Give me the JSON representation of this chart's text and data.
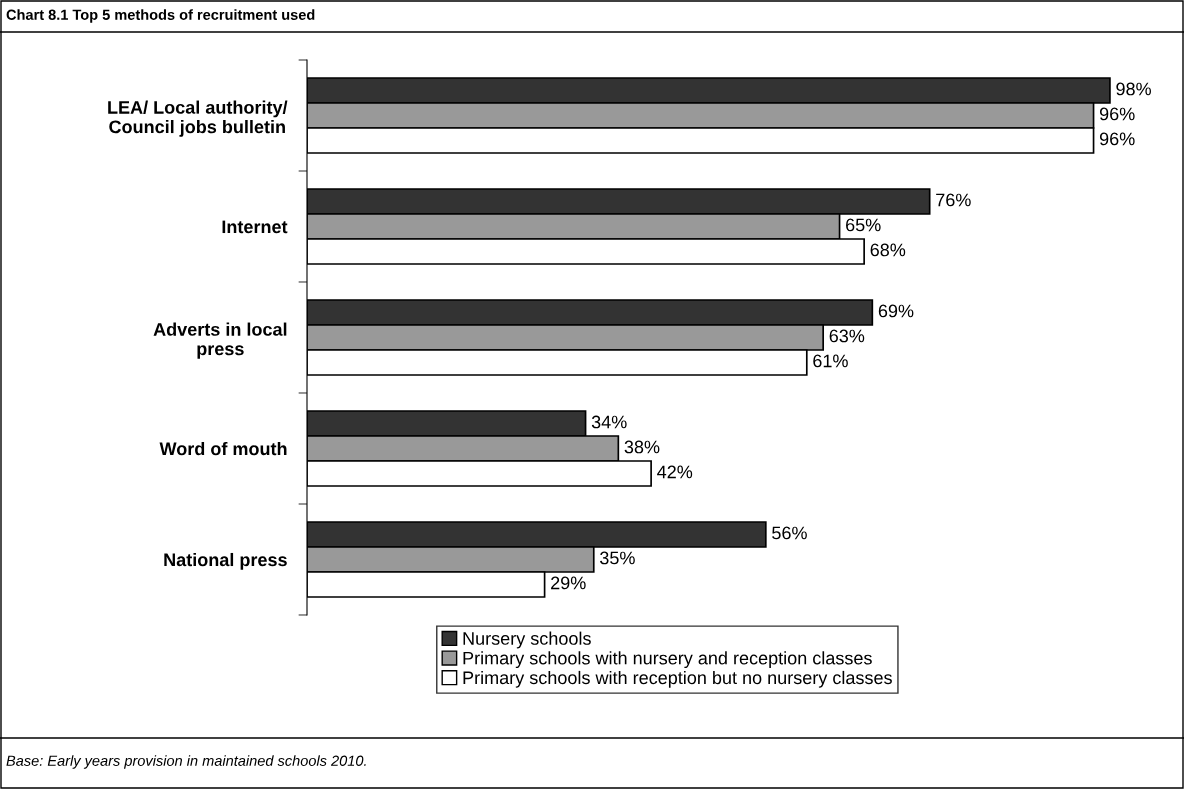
{
  "chart_data": {
    "type": "bar",
    "orientation": "horizontal",
    "title": "Chart 8.1 Top 5 methods of recruitment used",
    "categories": [
      "LEA/ Local authority/\nCouncil jobs bulletin",
      "Internet",
      "Adverts in local\npress",
      "Word of mouth",
      "National press"
    ],
    "series": [
      {
        "name": "Nursery schools",
        "color": "#333333",
        "values": [
          98,
          76,
          69,
          34,
          56
        ],
        "value_labels": [
          "98%",
          "76%",
          "69%",
          "34%",
          "56%"
        ]
      },
      {
        "name": "Primary schools with nursery and reception classes",
        "color": "#999999",
        "values": [
          96,
          65,
          63,
          38,
          35
        ],
        "value_labels": [
          "96%",
          "65%",
          "63%",
          "38%",
          "35%"
        ]
      },
      {
        "name": "Primary schools with reception but no nursery classes",
        "color": "#ffffff",
        "values": [
          96,
          68,
          61,
          42,
          29
        ],
        "value_labels": [
          "96%",
          "68%",
          "61%",
          "42%",
          "29%"
        ]
      }
    ],
    "tick_labels": "y",
    "grid": false,
    "legend": "bottom",
    "annotations": [
      "Base: Early years provision in maintained schools 2010."
    ]
  }
}
